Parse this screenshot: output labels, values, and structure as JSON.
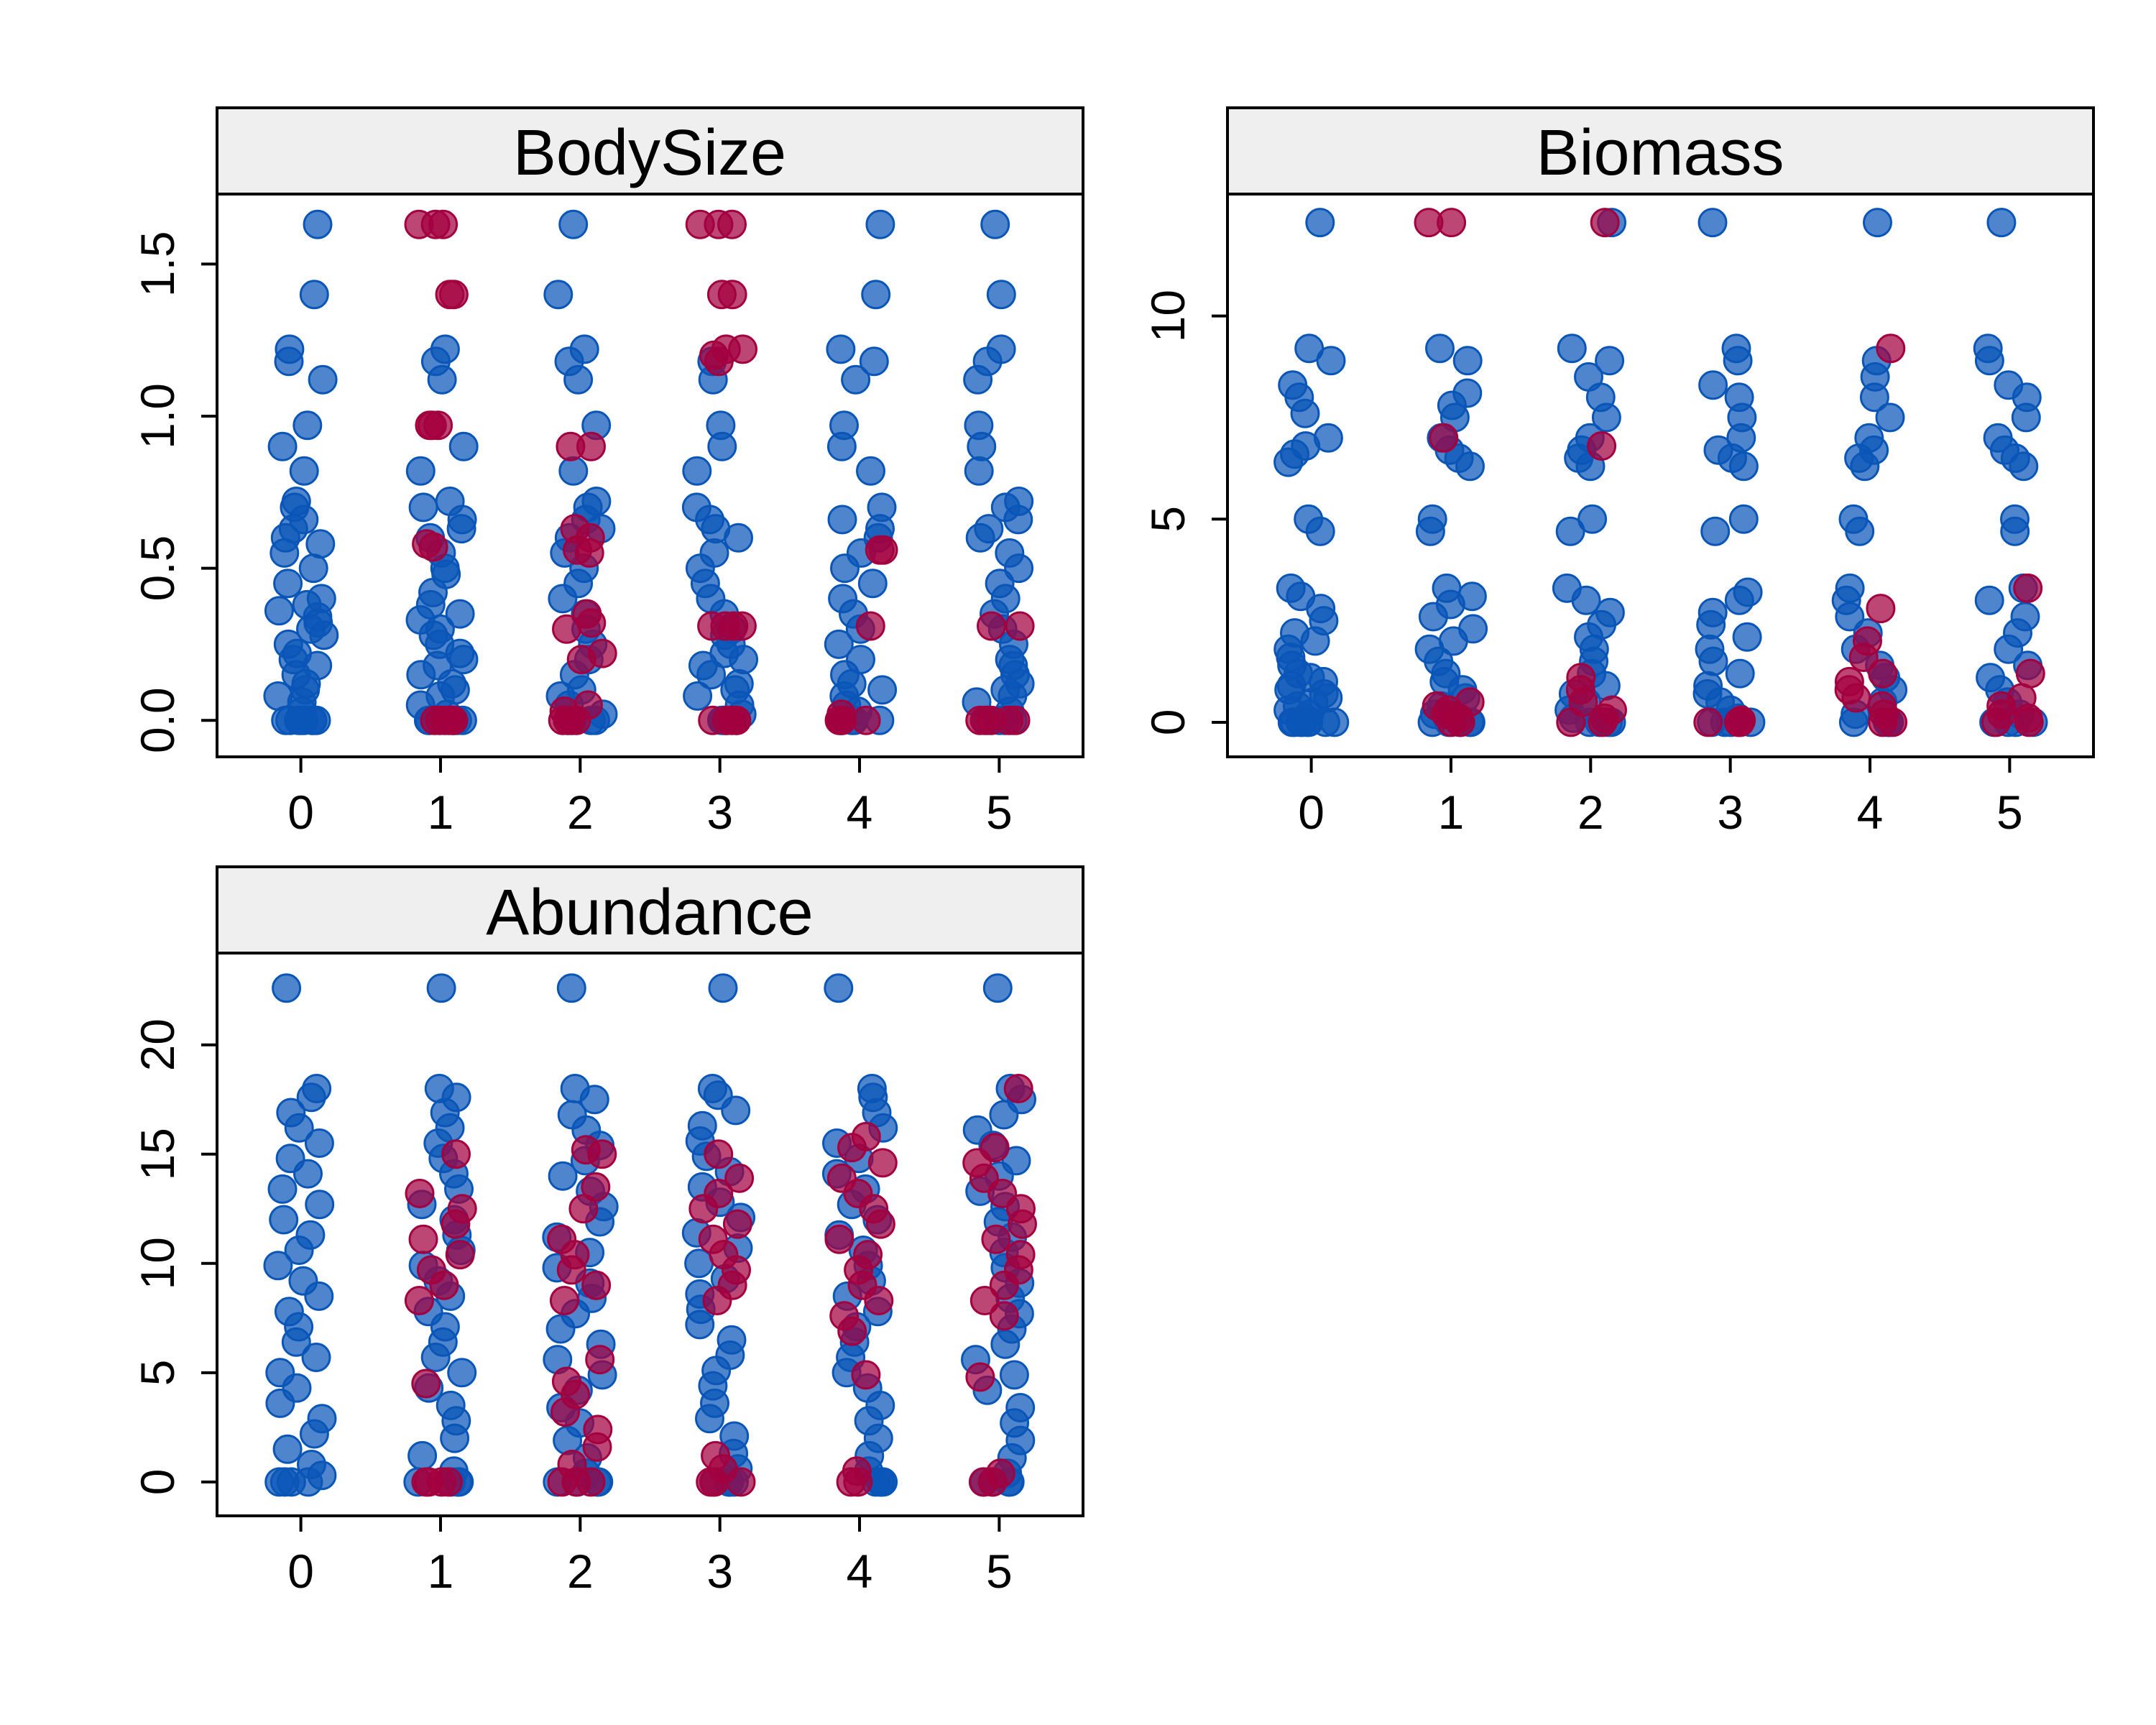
{
  "colors": {
    "blue": "#0a56b8",
    "red": "#a3003f",
    "strip_fill": "#efefef",
    "axis": "#000000",
    "background": "#ffffff"
  },
  "chart_data": [
    {
      "type": "scatter",
      "title": "BodySize",
      "xlabel": "",
      "ylabel": "",
      "categories": [
        "0",
        "1",
        "2",
        "3",
        "4",
        "5"
      ],
      "x_ticks": [
        "0",
        "1",
        "2",
        "3",
        "4",
        "5"
      ],
      "y_ticks": [
        "0.0",
        "0.5",
        "1.0",
        "1.5"
      ],
      "xlim": [
        -0.6,
        5.6
      ],
      "ylim": [
        -0.12,
        1.73
      ],
      "grid": false,
      "legend": "none",
      "series": [
        {
          "color": "#0a56b8",
          "groups": [
            [
              0,
              0,
              0,
              0,
              0,
              0,
              0,
              0,
              0.03,
              0.06,
              0.08,
              0.1,
              0.12,
              0.15,
              0.18,
              0.2,
              0.22,
              0.25,
              0.28,
              0.3,
              0.32,
              0.34,
              0.36,
              0.38,
              0.4,
              0.45,
              0.5,
              0.55,
              0.58,
              0.6,
              0.63,
              0.66,
              0.7,
              0.72,
              0.82,
              0.9,
              0.97,
              1.12,
              1.18,
              1.22,
              1.4,
              1.63
            ],
            [
              0,
              0,
              0,
              0,
              0,
              0.02,
              0.05,
              0.08,
              0.1,
              0.12,
              0.15,
              0.18,
              0.2,
              0.22,
              0.25,
              0.28,
              0.3,
              0.33,
              0.35,
              0.38,
              0.42,
              0.48,
              0.5,
              0.55,
              0.6,
              0.63,
              0.66,
              0.7,
              0.72,
              0.82,
              0.9,
              1.12,
              1.18,
              1.22
            ],
            [
              0,
              0,
              0,
              0,
              0.02,
              0.05,
              0.08,
              0.1,
              0.15,
              0.2,
              0.25,
              0.3,
              0.35,
              0.4,
              0.45,
              0.5,
              0.55,
              0.6,
              0.63,
              0.66,
              0.7,
              0.72,
              0.82,
              0.97,
              1.12,
              1.18,
              1.22,
              1.4,
              1.63
            ],
            [
              0,
              0,
              0,
              0,
              0.02,
              0.05,
              0.08,
              0.1,
              0.12,
              0.15,
              0.18,
              0.2,
              0.22,
              0.25,
              0.28,
              0.3,
              0.35,
              0.4,
              0.45,
              0.5,
              0.55,
              0.6,
              0.63,
              0.66,
              0.7,
              0.82,
              0.9,
              0.97,
              1.12,
              1.18
            ],
            [
              0,
              0,
              0,
              0,
              0.03,
              0.05,
              0.08,
              0.1,
              0.12,
              0.15,
              0.2,
              0.25,
              0.3,
              0.35,
              0.4,
              0.45,
              0.5,
              0.55,
              0.6,
              0.63,
              0.66,
              0.7,
              0.82,
              0.9,
              0.97,
              1.12,
              1.18,
              1.22,
              1.4,
              1.63
            ],
            [
              0,
              0,
              0,
              0,
              0.03,
              0.06,
              0.08,
              0.1,
              0.12,
              0.15,
              0.18,
              0.2,
              0.25,
              0.3,
              0.35,
              0.4,
              0.45,
              0.5,
              0.55,
              0.6,
              0.63,
              0.66,
              0.7,
              0.72,
              0.82,
              0.9,
              0.97,
              1.12,
              1.18,
              1.22,
              1.4,
              1.63
            ]
          ]
        },
        {
          "color": "#a3003f",
          "groups": [
            [],
            [
              0,
              0,
              0,
              0,
              0,
              0,
              0.57,
              0.58,
              0.97,
              0.97,
              0.97,
              1.4,
              1.4,
              1.63,
              1.63,
              1.63
            ],
            [
              0,
              0,
              0,
              0,
              0.03,
              0.05,
              0.2,
              0.22,
              0.3,
              0.32,
              0.35,
              0.55,
              0.56,
              0.6,
              0.63,
              0.9,
              0.9
            ],
            [
              0,
              0,
              0,
              0,
              0,
              0.31,
              0.31,
              0.31,
              0.31,
              1.18,
              1.2,
              1.22,
              1.22,
              1.4,
              1.4,
              1.63,
              1.63,
              1.63
            ],
            [
              0,
              0,
              0,
              0,
              0.02,
              0.31,
              0.56,
              0.56
            ],
            [
              0,
              0,
              0,
              0,
              0,
              0.31,
              0.31
            ]
          ]
        }
      ]
    },
    {
      "type": "scatter",
      "title": "Biomass",
      "xlabel": "",
      "ylabel": "",
      "categories": [
        "0",
        "1",
        "2",
        "3",
        "4",
        "5"
      ],
      "x_ticks": [
        "0",
        "1",
        "2",
        "3",
        "4",
        "5"
      ],
      "y_ticks": [
        "0",
        "5",
        "10"
      ],
      "xlim": [
        -0.6,
        5.6
      ],
      "ylim": [
        -0.85,
        13.0
      ],
      "grid": false,
      "legend": "none",
      "series": [
        {
          "color": "#0a56b8",
          "groups": [
            [
              0,
              0,
              0,
              0,
              0,
              0,
              0,
              0,
              0.1,
              0.2,
              0.3,
              0.4,
              0.5,
              0.6,
              0.7,
              0.8,
              0.9,
              1.0,
              1.1,
              1.2,
              1.4,
              1.6,
              1.8,
              2.0,
              2.2,
              2.5,
              2.8,
              3.1,
              3.3,
              4.7,
              5.0,
              6.4,
              6.6,
              6.8,
              7.0,
              7.6,
              8.0,
              8.3,
              8.9,
              9.2,
              12.3
            ],
            [
              0,
              0,
              0,
              0,
              0,
              0.2,
              0.4,
              0.6,
              0.8,
              1.0,
              1.2,
              1.5,
              1.8,
              2.0,
              2.3,
              2.6,
              2.9,
              3.1,
              3.3,
              4.7,
              5.0,
              6.3,
              6.5,
              6.7,
              7.0,
              7.5,
              7.8,
              8.1,
              8.9,
              9.2
            ],
            [
              0,
              0,
              0,
              0,
              0.1,
              0.3,
              0.5,
              0.7,
              0.9,
              1.2,
              1.5,
              1.8,
              2.1,
              2.4,
              2.7,
              3.0,
              3.3,
              4.7,
              5.0,
              6.3,
              6.5,
              6.7,
              7.0,
              7.5,
              8.0,
              8.5,
              8.9,
              9.2,
              12.3
            ],
            [
              0,
              0,
              0,
              0,
              0.1,
              0.3,
              0.5,
              0.7,
              0.9,
              1.2,
              1.5,
              1.8,
              2.1,
              2.4,
              2.7,
              3.0,
              3.2,
              4.7,
              5.0,
              6.3,
              6.5,
              6.7,
              7.0,
              7.5,
              8.0,
              8.3,
              8.9,
              9.2,
              12.3
            ],
            [
              0,
              0,
              0,
              0,
              0.2,
              0.5,
              0.8,
              1.1,
              1.4,
              1.8,
              2.2,
              2.6,
              3.0,
              3.3,
              4.7,
              5.0,
              6.3,
              6.5,
              6.7,
              7.0,
              7.5,
              8.0,
              8.5,
              8.9,
              12.3
            ],
            [
              0,
              0,
              0,
              0,
              0.2,
              0.5,
              0.8,
              1.1,
              1.4,
              1.8,
              2.2,
              2.6,
              3.0,
              3.3,
              4.7,
              5.0,
              6.3,
              6.5,
              6.7,
              7.0,
              7.5,
              8.0,
              8.3,
              8.9,
              9.2,
              12.3
            ]
          ]
        },
        {
          "color": "#a3003f",
          "groups": [
            [],
            [
              0,
              0,
              0.1,
              0.2,
              0.3,
              0.4,
              0.5,
              7.0,
              12.3,
              12.3
            ],
            [
              0,
              0,
              0.1,
              0.3,
              0.5,
              0.8,
              1.1,
              6.8,
              12.3
            ],
            [
              0,
              0,
              0,
              0.05
            ],
            [
              0,
              0,
              0.2,
              0.4,
              0.6,
              0.8,
              1.0,
              1.2,
              1.6,
              2.0,
              2.8,
              9.2
            ],
            [
              0,
              0,
              0.1,
              0.2,
              0.4,
              0.6,
              1.2,
              3.3
            ]
          ]
        }
      ]
    },
    {
      "type": "scatter",
      "title": "Abundance",
      "xlabel": "",
      "ylabel": "",
      "categories": [
        "0",
        "1",
        "2",
        "3",
        "4",
        "5"
      ],
      "x_ticks": [
        "0",
        "1",
        "2",
        "3",
        "4",
        "5"
      ],
      "y_ticks": [
        "0",
        "5",
        "10",
        "15",
        "20"
      ],
      "xlim": [
        -0.6,
        5.6
      ],
      "ylim": [
        -1.55,
        24.2
      ],
      "grid": false,
      "legend": "none",
      "series": [
        {
          "color": "#0a56b8",
          "groups": [
            [
              0,
              0,
              0,
              0,
              0.3,
              0.8,
              1.5,
              2.2,
              2.9,
              3.6,
              4.3,
              5.0,
              5.7,
              6.4,
              7.1,
              7.8,
              8.5,
              9.2,
              9.9,
              10.6,
              11.3,
              12.0,
              12.7,
              13.4,
              14.1,
              14.8,
              15.5,
              16.2,
              16.9,
              17.6,
              18.0,
              22.6
            ],
            [
              0,
              0,
              0,
              0,
              0.5,
              1.2,
              2.0,
              2.8,
              3.5,
              4.3,
              5.0,
              5.7,
              6.4,
              7.1,
              7.8,
              8.5,
              9.2,
              9.9,
              10.6,
              11.3,
              12.0,
              12.7,
              13.4,
              14.1,
              14.8,
              15.5,
              16.2,
              16.9,
              17.6,
              18.0,
              22.6
            ],
            [
              0,
              0,
              0,
              0,
              0.4,
              1.1,
              1.9,
              2.7,
              3.4,
              4.2,
              4.9,
              5.6,
              6.3,
              7.0,
              7.7,
              8.4,
              9.1,
              9.8,
              10.5,
              11.2,
              11.9,
              12.6,
              13.3,
              14.0,
              14.7,
              15.4,
              16.1,
              16.8,
              17.5,
              18.0,
              22.6
            ],
            [
              0,
              0,
              0,
              0,
              0.6,
              1.3,
              2.1,
              2.9,
              3.6,
              4.4,
              5.1,
              5.8,
              6.5,
              7.2,
              7.9,
              8.6,
              9.3,
              10.0,
              10.7,
              11.4,
              12.1,
              12.8,
              13.5,
              14.2,
              14.9,
              15.6,
              16.3,
              17.0,
              17.7,
              18.0,
              22.6
            ],
            [
              0,
              0,
              0,
              0,
              0.5,
              1.2,
              2.0,
              2.8,
              3.5,
              4.3,
              5.0,
              5.7,
              6.4,
              7.1,
              7.8,
              8.5,
              9.2,
              9.9,
              10.6,
              11.3,
              12.0,
              12.7,
              13.4,
              14.1,
              14.8,
              15.5,
              16.2,
              16.9,
              17.6,
              18.0,
              22.6
            ],
            [
              0,
              0,
              0,
              0,
              0.4,
              1.1,
              1.9,
              2.7,
              3.4,
              4.2,
              4.9,
              5.6,
              6.3,
              7.0,
              7.7,
              8.4,
              9.1,
              9.8,
              10.5,
              11.2,
              11.9,
              12.6,
              13.3,
              14.0,
              14.7,
              15.4,
              16.1,
              16.8,
              17.5,
              18.0,
              22.6
            ]
          ]
        },
        {
          "color": "#a3003f",
          "groups": [
            [],
            [
              0,
              0,
              0,
              0,
              4.5,
              8.3,
              9.0,
              9.7,
              10.4,
              11.1,
              11.8,
              12.5,
              13.2,
              15.0
            ],
            [
              0,
              0,
              0,
              0.8,
              1.6,
              2.4,
              3.2,
              4.0,
              4.6,
              5.6,
              8.3,
              9.0,
              9.7,
              10.4,
              11.1,
              12.5,
              13.5,
              15.0,
              15.2
            ],
            [
              0,
              0,
              0,
              0.6,
              1.2,
              8.3,
              9.0,
              9.7,
              10.4,
              11.1,
              11.8,
              12.5,
              13.2,
              13.9,
              15.0
            ],
            [
              0,
              0,
              0.5,
              4.9,
              6.9,
              7.6,
              8.3,
              9.0,
              9.7,
              10.4,
              11.1,
              11.8,
              12.5,
              13.2,
              13.9,
              14.6,
              15.3,
              15.8
            ],
            [
              0,
              0,
              0.4,
              4.8,
              7.6,
              8.3,
              9.0,
              9.7,
              10.4,
              11.1,
              11.8,
              12.5,
              13.2,
              13.9,
              14.6,
              15.3,
              18.0
            ]
          ]
        }
      ]
    }
  ]
}
